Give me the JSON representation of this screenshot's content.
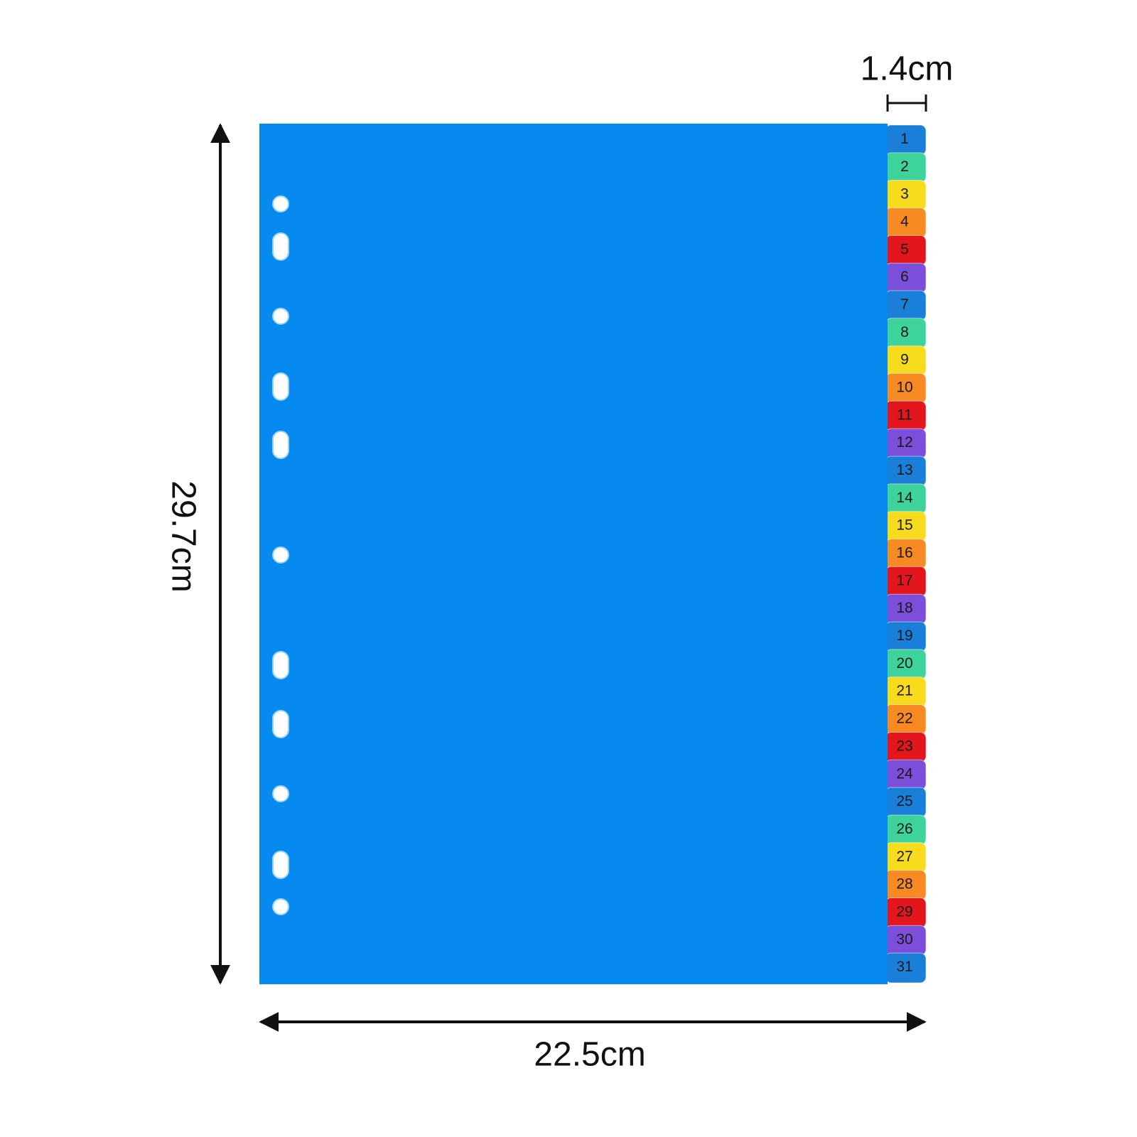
{
  "dimensions": {
    "height": "29.7cm",
    "width": "22.5cm",
    "tab_width": "1.4cm"
  },
  "tab_colors": [
    "#1a7fd8",
    "#3fd39c",
    "#f7dc1e",
    "#f78a22",
    "#e2161c",
    "#7b4fd9"
  ],
  "tabs": [
    "1",
    "2",
    "3",
    "4",
    "5",
    "6",
    "7",
    "8",
    "9",
    "10",
    "11",
    "12",
    "13",
    "14",
    "15",
    "16",
    "17",
    "18",
    "19",
    "20",
    "21",
    "22",
    "23",
    "24",
    "25",
    "26",
    "27",
    "28",
    "29",
    "30",
    "31"
  ]
}
